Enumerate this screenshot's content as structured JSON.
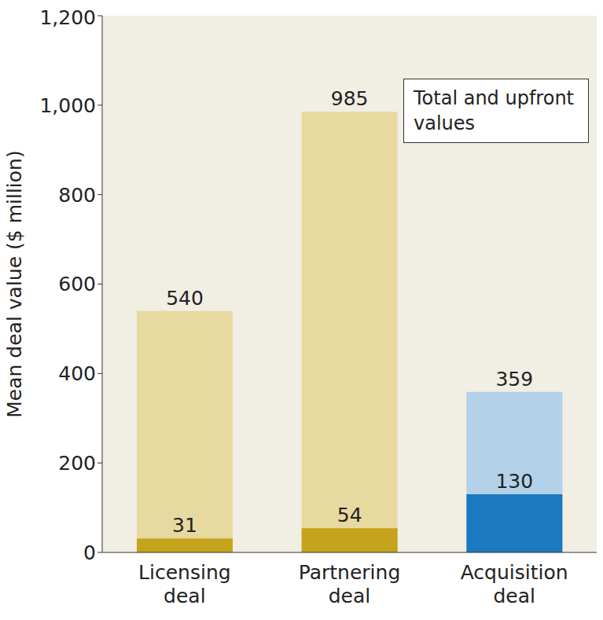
{
  "chart_data": {
    "type": "bar",
    "categories": [
      "Licensing deal",
      "Partnering deal",
      "Acquisition deal"
    ],
    "series": [
      {
        "values": [
          540,
          985,
          359
        ],
        "colors": [
          "#e8d9a0",
          "#e8d9a0",
          "#b3d1e8"
        ]
      },
      {
        "values": [
          31,
          54,
          130
        ],
        "colors": [
          "#c5a31c",
          "#c5a31c",
          "#1b79c0"
        ]
      }
    ],
    "y_label": "Mean deal value ($ million)",
    "annotation": "Total and upfront values",
    "ylim": [
      0,
      1200
    ],
    "yticks": [
      0,
      200,
      400,
      600,
      800,
      {
        "value": 1000,
        "label": "1,000"
      },
      {
        "value": 1200,
        "label": "1,200"
      }
    ],
    "grid": false,
    "data_labels": true
  }
}
